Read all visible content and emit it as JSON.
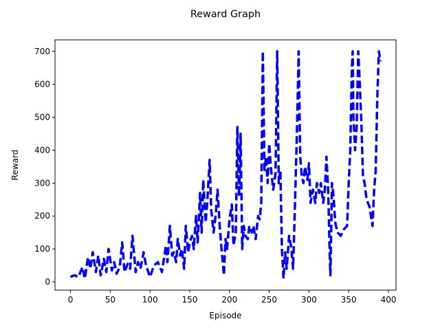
{
  "chart_data": {
    "type": "line",
    "title": "Reward Graph",
    "xlabel": "Episode",
    "ylabel": "Reward",
    "xlim": [
      -19.5,
      409.5
    ],
    "ylim": [
      -25,
      735
    ],
    "xticks": [
      0,
      50,
      100,
      150,
      200,
      250,
      300,
      350,
      400
    ],
    "yticks": [
      0,
      100,
      200,
      300,
      400,
      500,
      600,
      700
    ],
    "grid": false,
    "legend": "none",
    "series": [
      {
        "color": "#0000ff",
        "line_style": "dashed",
        "x": [
          0,
          5,
          10,
          15,
          18,
          22,
          25,
          28,
          32,
          35,
          38,
          42,
          45,
          48,
          52,
          55,
          58,
          62,
          65,
          68,
          72,
          75,
          78,
          82,
          85,
          88,
          92,
          95,
          100,
          105,
          110,
          115,
          120,
          122,
          125,
          128,
          130,
          133,
          135,
          138,
          140,
          143,
          145,
          148,
          150,
          153,
          155,
          158,
          160,
          163,
          165,
          167,
          170,
          172,
          175,
          177,
          180,
          183,
          185,
          188,
          190,
          193,
          195,
          197,
          200,
          203,
          205,
          208,
          210,
          212,
          214,
          216,
          218,
          220,
          223,
          225,
          228,
          230,
          233,
          236,
          238,
          240,
          242,
          244,
          246,
          248,
          250,
          252,
          255,
          258,
          260,
          262,
          264,
          266,
          268,
          270,
          272,
          275,
          278,
          280,
          282,
          285,
          287,
          289,
          291,
          293,
          295,
          298,
          300,
          302,
          305,
          308,
          310,
          313,
          315,
          318,
          320,
          322,
          324,
          325,
          326,
          327,
          329,
          331,
          333,
          336,
          340,
          344,
          348,
          350,
          352,
          354,
          355,
          356,
          358,
          360,
          362,
          364,
          366,
          368,
          370,
          372,
          374,
          376,
          378,
          380,
          382,
          384,
          386,
          388,
          390
        ],
        "values": [
          15,
          20,
          15,
          45,
          10,
          75,
          40,
          90,
          30,
          80,
          20,
          70,
          30,
          100,
          35,
          60,
          25,
          45,
          120,
          30,
          55,
          40,
          140,
          30,
          60,
          40,
          90,
          50,
          15,
          50,
          60,
          30,
          110,
          60,
          170,
          80,
          90,
          60,
          130,
          80,
          100,
          40,
          170,
          90,
          120,
          140,
          100,
          200,
          120,
          270,
          150,
          310,
          180,
          240,
          370,
          220,
          150,
          210,
          280,
          160,
          100,
          20,
          130,
          100,
          190,
          235,
          110,
          150,
          470,
          260,
          450,
          100,
          170,
          140,
          130,
          170,
          150,
          170,
          130,
          200,
          190,
          240,
          700,
          340,
          380,
          300,
          420,
          350,
          280,
          330,
          700,
          300,
          340,
          100,
          10,
          90,
          40,
          140,
          100,
          40,
          200,
          470,
          700,
          380,
          320,
          300,
          350,
          310,
          360,
          240,
          280,
          240,
          300,
          270,
          300,
          240,
          280,
          380,
          290,
          200,
          90,
          20,
          300,
          260,
          180,
          150,
          140,
          160,
          170,
          300,
          400,
          650,
          700,
          500,
          400,
          470,
          700,
          600,
          480,
          320,
          300,
          260,
          240,
          230,
          200,
          170,
          280,
          340,
          560,
          700,
          670
        ]
      }
    ]
  }
}
